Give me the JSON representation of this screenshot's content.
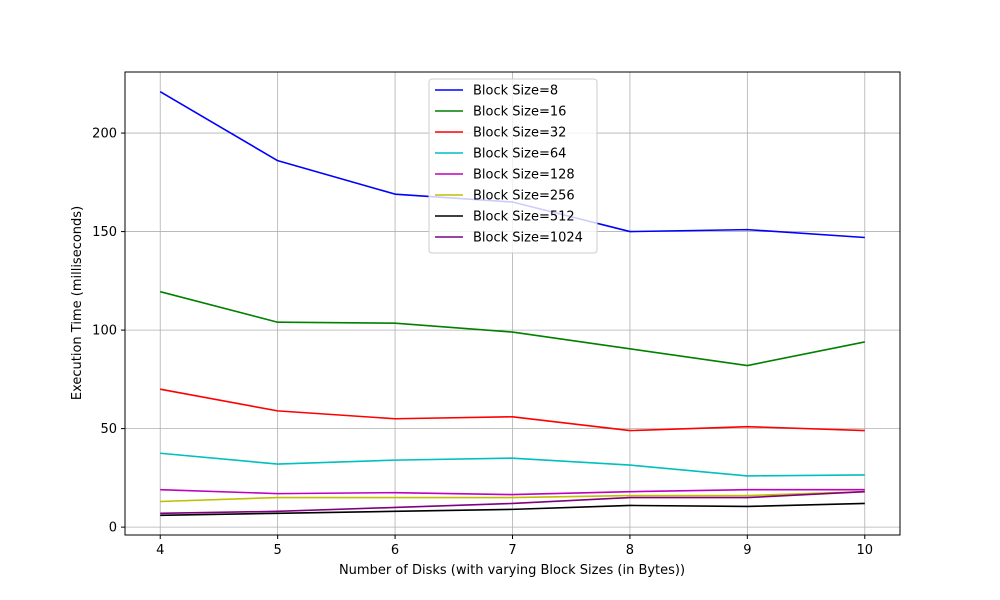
{
  "chart_data": {
    "type": "line",
    "title": "",
    "xlabel": "Number of Disks (with varying Block Sizes (in Bytes))",
    "ylabel": "Execution Time (milliseconds)",
    "x": [
      4,
      5,
      6,
      7,
      8,
      9,
      10
    ],
    "xlim": [
      3.7,
      10.3
    ],
    "ylim": [
      -4,
      231
    ],
    "xticks": [
      4,
      5,
      6,
      7,
      8,
      9,
      10
    ],
    "yticks": [
      0,
      50,
      100,
      150,
      200
    ],
    "grid": true,
    "legend_position": "upper-center",
    "series": [
      {
        "name": "Block Size=8",
        "color": "#0000ff",
        "values": [
          221,
          186,
          169,
          165,
          150,
          151,
          147
        ]
      },
      {
        "name": "Block Size=16",
        "color": "#008000",
        "values": [
          119.5,
          104,
          103.5,
          99,
          90.5,
          82,
          94
        ]
      },
      {
        "name": "Block Size=32",
        "color": "#ff0000",
        "values": [
          70,
          59,
          55,
          56,
          49,
          51,
          49
        ]
      },
      {
        "name": "Block Size=64",
        "color": "#00bfbf",
        "values": [
          37.5,
          32,
          34,
          35,
          31.5,
          26,
          26.5
        ]
      },
      {
        "name": "Block Size=128",
        "color": "#bf00bf",
        "values": [
          19,
          17,
          17.5,
          16.5,
          18,
          19,
          19
        ]
      },
      {
        "name": "Block Size=256",
        "color": "#bfbf00",
        "values": [
          13,
          15,
          15,
          15,
          16,
          16,
          18
        ]
      },
      {
        "name": "Block Size=512",
        "color": "#000000",
        "values": [
          6,
          7,
          8,
          9,
          11,
          10.5,
          12
        ]
      },
      {
        "name": "Block Size=1024",
        "color": "#800080",
        "values": [
          7,
          8,
          10,
          12,
          15,
          15,
          18
        ]
      }
    ]
  }
}
